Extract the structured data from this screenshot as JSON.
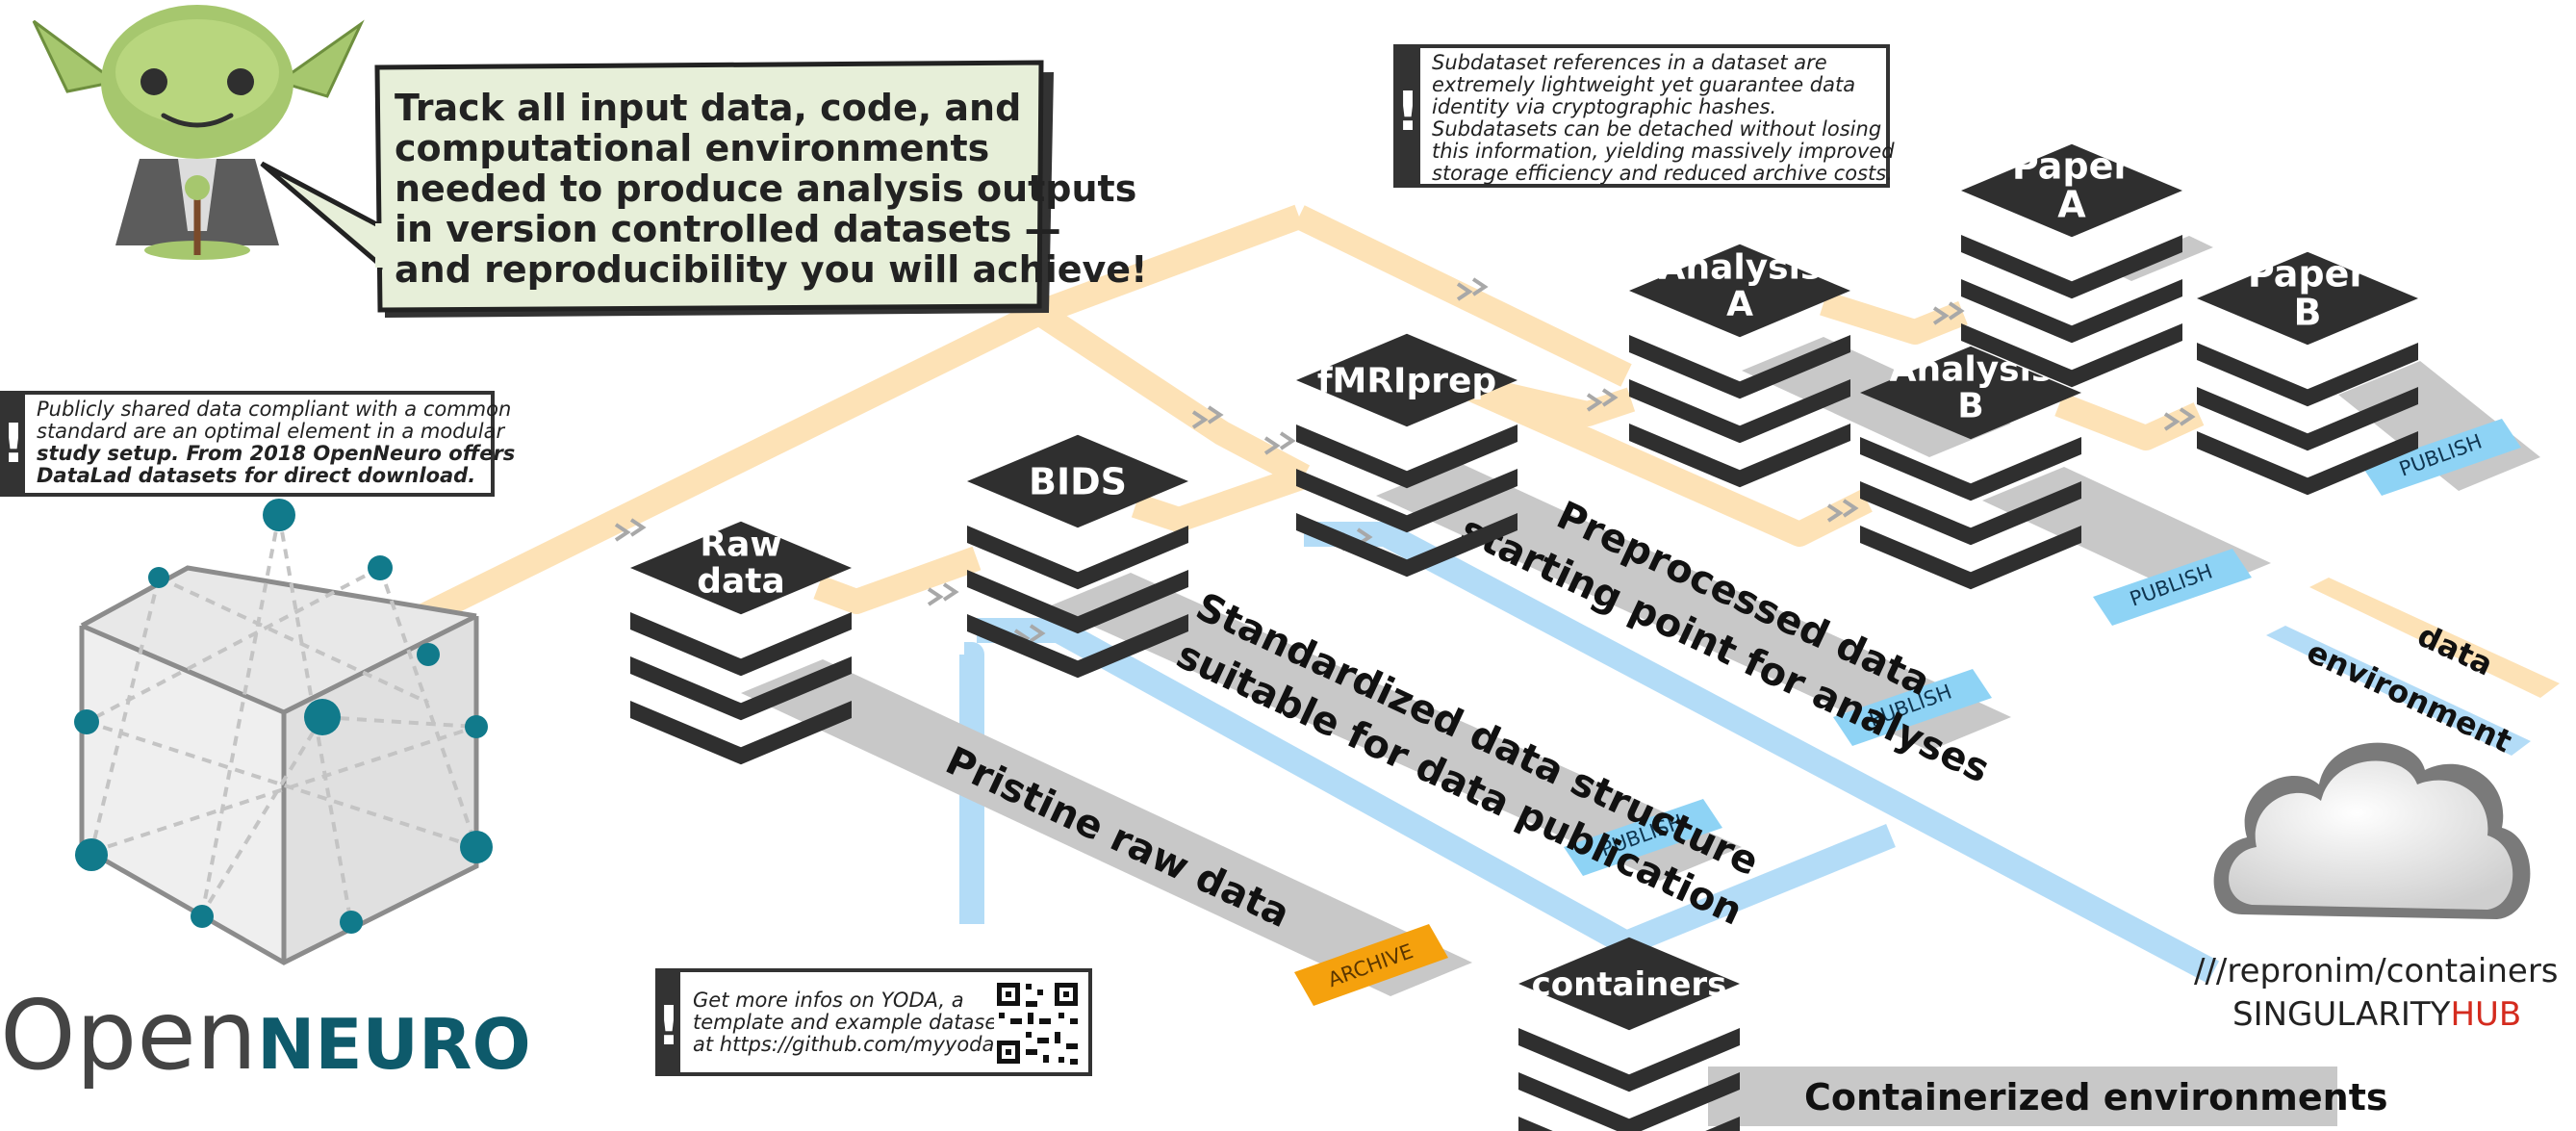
{
  "speech": {
    "lines": [
      "Track all input data, code, and",
      "computational environments",
      "needed to produce analysis outputs",
      "in version controlled datasets —",
      "and reproducibility you will achieve!"
    ]
  },
  "notes": {
    "subdataset": [
      "Subdataset references in a dataset are",
      "extremely lightweight yet guarantee data",
      "identity via cryptographic hashes.",
      "Subdatasets can be detached without losing",
      "this information, yielding massively improved",
      "storage efficiency and reduced archive costs."
    ],
    "openneuro": [
      "Publicly shared data compliant with a common",
      "standard are an optimal element in a modular",
      "study setup. From 2018 OpenNeuro offers",
      "DataLad datasets for direct download."
    ],
    "yoda": [
      "Get more infos on YODA, a",
      "template and example datasets",
      "at https://github.com/myyoda"
    ]
  },
  "stacks": {
    "raw": [
      "Raw",
      "data"
    ],
    "bids": [
      "BIDS"
    ],
    "fmriprep": [
      "fMRIprep"
    ],
    "analysis_a": [
      "Analysis",
      "A"
    ],
    "analysis_b": [
      "Analysis",
      "B"
    ],
    "paper_a": [
      "Paper",
      "A"
    ],
    "paper_b": [
      "Paper",
      "B"
    ],
    "containers": [
      "containers"
    ]
  },
  "lanes": {
    "raw": "Pristine raw data",
    "bids": [
      "Standardized data structure",
      "suitable for data publication"
    ],
    "fmriprep": [
      "Preprocessed data",
      "starting point for analyses"
    ],
    "containers": "Containerized environments"
  },
  "tags": {
    "archive": "ARCHIVE",
    "publish": "PUBLISH"
  },
  "legend": {
    "data": "data",
    "environment": "environment"
  },
  "singularity": {
    "path": "///repronim/containers",
    "brand_main": "SINGULARITY",
    "brand_accent": "HUB"
  },
  "openneuro": {
    "open": "Open",
    "neuro": "NEURO"
  },
  "colors": {
    "data_pipe": "#fde2b6",
    "env_pipe": "#b3dcf7",
    "stack": "#2f2f2f",
    "lane": "#c8c8c8",
    "publish": "#8ed3f5",
    "archive": "#f5a10d",
    "speech_bg": "#e7efd9",
    "node": "#117a8b",
    "hub_red": "#d42b1e",
    "neuro_teal": "#0e5a6b"
  }
}
